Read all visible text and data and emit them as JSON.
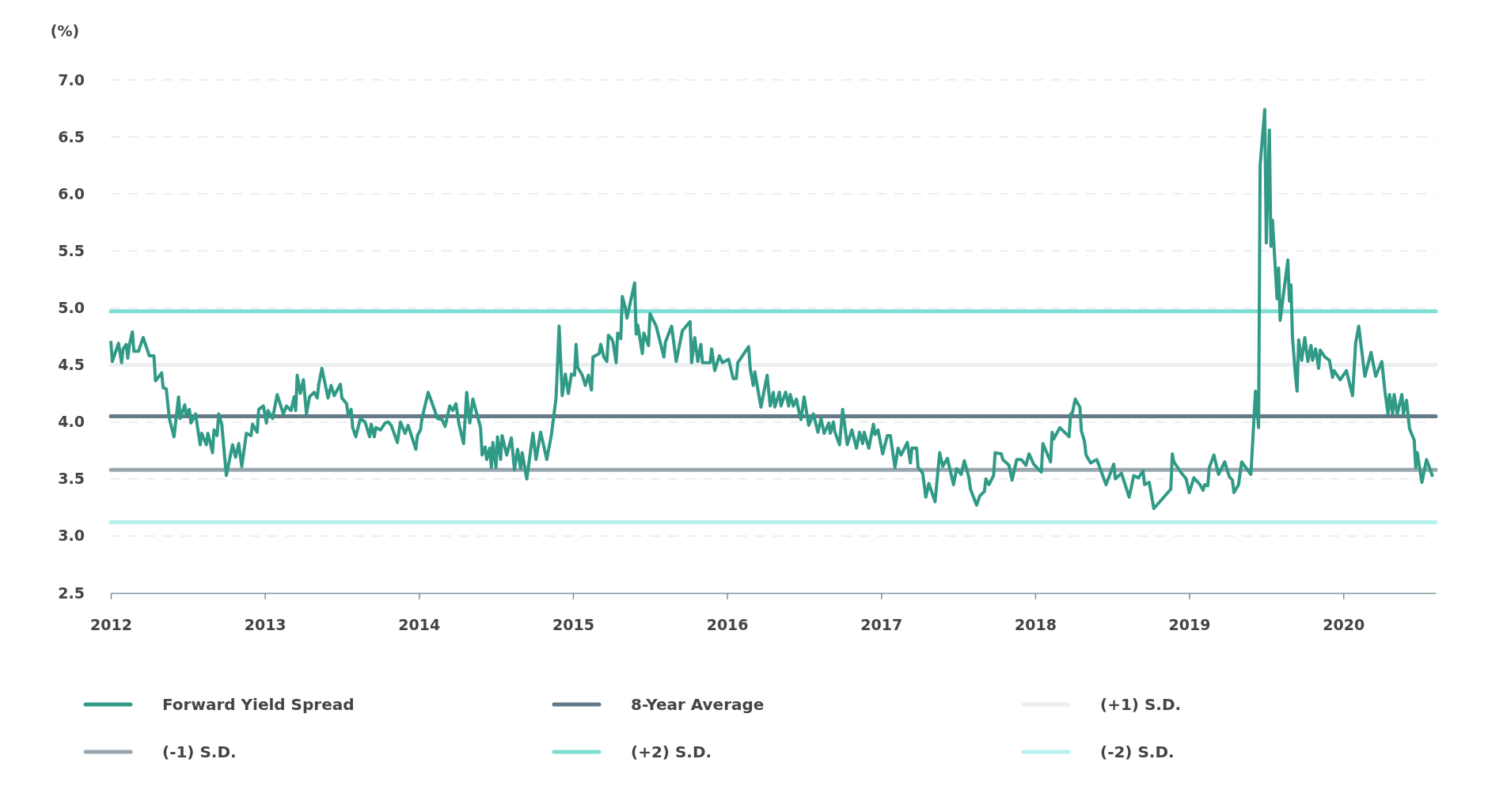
{
  "chart_data": {
    "type": "line",
    "ylabel": "(%)",
    "xlim": [
      2012,
      2020.6
    ],
    "xticks": [
      2012,
      2013,
      2014,
      2015,
      2016,
      2017,
      2018,
      2019,
      2020
    ],
    "ylim": [
      2.5,
      7
    ],
    "yticks": [
      {
        "value": 2.5,
        "label": "2.5"
      },
      {
        "value": 3,
        "label": "3.0"
      },
      {
        "value": 3.5,
        "label": "3.5"
      },
      {
        "value": 4,
        "label": "4.0"
      },
      {
        "value": 4.5,
        "label": "4.5"
      },
      {
        "value": 5,
        "label": "5.0"
      },
      {
        "value": 5.5,
        "label": "5.5"
      },
      {
        "value": 6,
        "label": "6.0"
      },
      {
        "value": 6.5,
        "label": "6.5"
      },
      {
        "value": 7,
        "label": "7.0"
      }
    ],
    "grid": "y",
    "legend": "bottom",
    "line_style": "solid",
    "marker": "none",
    "x": [
      2012.0,
      2012.01,
      2012.05,
      2012.07,
      2012.08,
      2012.1,
      2012.11,
      2012.12,
      2012.14,
      2012.15,
      2012.18,
      2012.21,
      2012.25,
      2012.28,
      2012.29,
      2012.33,
      2012.34,
      2012.36,
      2012.38,
      2012.41,
      2012.44,
      2012.45,
      2012.48,
      2012.49,
      2012.51,
      2012.52,
      2012.55,
      2012.58,
      2012.59,
      2012.62,
      2012.63,
      2012.64,
      2012.66,
      2012.67,
      2012.69,
      2012.7,
      2012.72,
      2012.75,
      2012.79,
      2012.81,
      2012.83,
      2012.85,
      2012.88,
      2012.91,
      2012.92,
      2012.95,
      2012.96,
      2012.99,
      2013.01,
      2013.02,
      2013.05,
      2013.08,
      2013.12,
      2013.14,
      2013.17,
      2013.19,
      2013.2,
      2013.21,
      2013.23,
      2013.25,
      2013.27,
      2013.29,
      2013.32,
      2013.34,
      2013.35,
      2013.37,
      2013.41,
      2013.43,
      2013.45,
      2013.49,
      2013.5,
      2013.53,
      2013.54,
      2013.56,
      2013.57,
      2013.59,
      2013.62,
      2013.65,
      2013.68,
      2013.69,
      2013.71,
      2013.72,
      2013.75,
      2013.78,
      2013.8,
      2013.82,
      2013.86,
      2013.88,
      2013.91,
      2013.93,
      2013.98,
      2013.99,
      2014.01,
      2014.02,
      2014.06,
      2014.1,
      2014.12,
      2014.15,
      2014.17,
      2014.2,
      2014.22,
      2014.24,
      2014.26,
      2014.29,
      2014.31,
      2014.33,
      2014.35,
      2014.4,
      2014.41,
      2014.43,
      2014.44,
      2014.46,
      2014.47,
      2014.48,
      2014.5,
      2014.51,
      2014.53,
      2014.54,
      2014.57,
      2014.6,
      2014.62,
      2014.64,
      2014.66,
      2014.67,
      2014.7,
      2014.74,
      2014.76,
      2014.79,
      2014.83,
      2014.86,
      2014.89,
      2014.91,
      2014.93,
      2014.95,
      2014.97,
      2014.99,
      2015.01,
      2015.02,
      2015.03,
      2015.06,
      2015.08,
      2015.1,
      2015.12,
      2015.13,
      2015.17,
      2015.18,
      2015.2,
      2015.22,
      2015.23,
      2015.25,
      2015.26,
      2015.28,
      2015.29,
      2015.31,
      2015.32,
      2015.34,
      2015.35,
      2015.4,
      2015.41,
      2015.42,
      2015.43,
      2015.45,
      2015.46,
      2015.49,
      2015.5,
      2015.54,
      2015.59,
      2015.6,
      2015.64,
      2015.67,
      2015.71,
      2015.76,
      2015.77,
      2015.79,
      2015.81,
      2015.83,
      2015.84,
      2015.89,
      2015.9,
      2015.92,
      2015.95,
      2015.97,
      2016.01,
      2016.04,
      2016.06,
      2016.07,
      2016.14,
      2016.15,
      2016.17,
      2016.18,
      2016.22,
      2016.26,
      2016.28,
      2016.3,
      2016.31,
      2016.34,
      2016.35,
      2016.38,
      2016.4,
      2016.41,
      2016.43,
      2016.45,
      2016.47,
      2016.48,
      2016.5,
      2016.53,
      2016.56,
      2016.59,
      2016.61,
      2016.63,
      2016.66,
      2016.67,
      2016.69,
      2016.7,
      2016.73,
      2016.75,
      2016.78,
      2016.81,
      2016.84,
      2016.86,
      2016.88,
      2016.89,
      2016.92,
      2016.95,
      2016.96,
      2016.98,
      2017.01,
      2017.04,
      2017.06,
      2017.09,
      2017.11,
      2017.13,
      2017.17,
      2017.19,
      2017.2,
      2017.23,
      2017.24,
      2017.27,
      2017.29,
      2017.31,
      2017.35,
      2017.38,
      2017.4,
      2017.43,
      2017.47,
      2017.49,
      2017.52,
      2017.54,
      2017.57,
      2017.58,
      2017.62,
      2017.64,
      2017.67,
      2017.68,
      2017.7,
      2017.73,
      2017.74,
      2017.78,
      2017.79,
      2017.83,
      2017.85,
      2017.88,
      2017.91,
      2017.94,
      2017.96,
      2017.99,
      2018.04,
      2018.05,
      2018.1,
      2018.11,
      2018.12,
      2018.16,
      2018.22,
      2018.23,
      2018.24,
      2018.26,
      2018.29,
      2018.3,
      2018.32,
      2018.33,
      2018.36,
      2018.4,
      2018.46,
      2018.51,
      2018.52,
      2018.56,
      2018.61,
      2018.64,
      2018.67,
      2018.7,
      2018.71,
      2018.74,
      2018.77,
      2018.88,
      2018.89,
      2018.9,
      2018.95,
      2018.98,
      2019.0,
      2019.03,
      2019.07,
      2019.09,
      2019.1,
      2019.12,
      2019.13,
      2019.16,
      2019.19,
      2019.23,
      2019.26,
      2019.28,
      2019.29,
      2019.32,
      2019.34,
      2019.4,
      2019.43,
      2019.45,
      2019.46,
      2019.49,
      2019.5,
      2019.52,
      2019.53,
      2019.54,
      2019.57,
      2019.58,
      2019.59,
      2019.64,
      2019.65,
      2019.66,
      2019.67,
      2019.69,
      2019.7,
      2019.71,
      2019.73,
      2019.75,
      2019.77,
      2019.79,
      2019.8,
      2019.82,
      2019.84,
      2019.85,
      2019.88,
      2019.91,
      2019.93,
      2019.94,
      2019.98,
      2020.02,
      2020.06,
      2020.08,
      2020.1,
      2020.14,
      2020.18,
      2020.21,
      2020.25,
      2020.27,
      2020.29,
      2020.3,
      2020.32,
      2020.33,
      2020.35,
      2020.38,
      2020.39,
      2020.41,
      2020.43,
      2020.46,
      2020.47,
      2020.48,
      2020.51,
      2020.54,
      2020.58
    ],
    "series": [
      {
        "name": "Forward Yield Spread",
        "color": "#319a87",
        "values": [
          4.71,
          4.53,
          4.69,
          4.52,
          4.64,
          4.68,
          4.56,
          4.67,
          4.79,
          4.62,
          4.62,
          4.74,
          4.58,
          4.58,
          4.36,
          4.43,
          4.3,
          4.29,
          4.03,
          3.87,
          4.22,
          4.03,
          4.15,
          4.06,
          4.11,
          3.99,
          4.07,
          3.8,
          3.9,
          3.8,
          3.9,
          3.85,
          3.73,
          3.93,
          3.88,
          4.07,
          3.98,
          3.53,
          3.8,
          3.69,
          3.81,
          3.61,
          3.9,
          3.88,
          3.98,
          3.91,
          4.11,
          4.14,
          3.99,
          4.1,
          4.03,
          4.24,
          4.07,
          4.14,
          4.1,
          4.22,
          4.1,
          4.41,
          4.25,
          4.37,
          4.07,
          4.22,
          4.26,
          4.21,
          4.33,
          4.47,
          4.21,
          4.32,
          4.23,
          4.33,
          4.21,
          4.16,
          4.07,
          4.11,
          3.95,
          3.87,
          4.03,
          4.0,
          3.87,
          3.98,
          3.87,
          3.95,
          3.93,
          3.99,
          4.0,
          3.97,
          3.82,
          4.0,
          3.9,
          3.97,
          3.76,
          3.88,
          3.93,
          4.03,
          4.26,
          4.11,
          4.03,
          4.02,
          3.96,
          4.14,
          4.1,
          4.16,
          3.98,
          3.81,
          4.26,
          3.99,
          4.2,
          3.95,
          3.71,
          3.78,
          3.67,
          3.77,
          3.6,
          3.82,
          3.6,
          3.87,
          3.67,
          3.88,
          3.71,
          3.86,
          3.58,
          3.76,
          3.59,
          3.73,
          3.5,
          3.9,
          3.67,
          3.91,
          3.67,
          3.89,
          4.21,
          4.84,
          4.23,
          4.42,
          4.25,
          4.42,
          4.41,
          4.68,
          4.48,
          4.41,
          4.32,
          4.41,
          4.28,
          4.57,
          4.6,
          4.68,
          4.57,
          4.53,
          4.76,
          4.73,
          4.7,
          4.52,
          4.78,
          4.73,
          5.1,
          5.0,
          4.91,
          5.22,
          4.77,
          4.85,
          4.77,
          4.6,
          4.78,
          4.67,
          4.95,
          4.84,
          4.57,
          4.7,
          4.84,
          4.53,
          4.8,
          4.88,
          4.52,
          4.74,
          4.53,
          4.68,
          4.52,
          4.52,
          4.64,
          4.45,
          4.58,
          4.52,
          4.55,
          4.38,
          4.38,
          4.52,
          4.66,
          4.47,
          4.32,
          4.44,
          4.13,
          4.41,
          4.14,
          4.26,
          4.13,
          4.26,
          4.14,
          4.26,
          4.14,
          4.24,
          4.14,
          4.2,
          4.07,
          4.02,
          4.22,
          3.97,
          4.07,
          3.91,
          4.03,
          3.9,
          3.99,
          3.9,
          4.0,
          3.91,
          3.8,
          4.11,
          3.8,
          3.93,
          3.77,
          3.91,
          3.81,
          3.91,
          3.77,
          3.98,
          3.89,
          3.93,
          3.72,
          3.88,
          3.88,
          3.6,
          3.77,
          3.71,
          3.82,
          3.64,
          3.77,
          3.77,
          3.6,
          3.55,
          3.34,
          3.46,
          3.3,
          3.73,
          3.61,
          3.68,
          3.45,
          3.59,
          3.54,
          3.66,
          3.51,
          3.41,
          3.27,
          3.35,
          3.39,
          3.5,
          3.45,
          3.53,
          3.73,
          3.72,
          3.67,
          3.62,
          3.49,
          3.67,
          3.67,
          3.62,
          3.72,
          3.63,
          3.56,
          3.81,
          3.65,
          3.91,
          3.85,
          3.95,
          3.87,
          4.07,
          4.07,
          4.2,
          4.13,
          3.92,
          3.83,
          3.71,
          3.64,
          3.67,
          3.45,
          3.63,
          3.5,
          3.55,
          3.34,
          3.53,
          3.51,
          3.57,
          3.45,
          3.47,
          3.24,
          3.41,
          3.72,
          3.65,
          3.55,
          3.5,
          3.38,
          3.51,
          3.45,
          3.4,
          3.45,
          3.44,
          3.6,
          3.71,
          3.54,
          3.65,
          3.52,
          3.49,
          3.38,
          3.45,
          3.65,
          3.54,
          4.27,
          3.95,
          6.25,
          6.74,
          5.57,
          6.56,
          5.54,
          5.77,
          5.08,
          5.35,
          4.89,
          5.42,
          5.06,
          5.2,
          4.74,
          4.4,
          4.27,
          4.72,
          4.54,
          4.74,
          4.53,
          4.67,
          4.54,
          4.64,
          4.47,
          4.63,
          4.57,
          4.54,
          4.39,
          4.45,
          4.37,
          4.45,
          4.23,
          4.69,
          4.84,
          4.4,
          4.61,
          4.4,
          4.53,
          4.27,
          4.07,
          4.24,
          4.07,
          4.24,
          4.07,
          4.24,
          4.07,
          4.19,
          3.94,
          3.84,
          3.6,
          3.73,
          3.47,
          3.67,
          3.52
        ]
      }
    ],
    "ref_lines": [
      {
        "axis": "y",
        "value": 4.05,
        "label": "8-Year Average",
        "color": "#647a87"
      },
      {
        "axis": "y",
        "value": 4.5,
        "label": "(+1) S.D.",
        "color": "#eceff2"
      },
      {
        "axis": "y",
        "value": 3.58,
        "label": "(-1) S.D.",
        "color": "#98a6ae"
      },
      {
        "axis": "y",
        "value": 4.97,
        "label": "(+2) S.D.",
        "color": "#7ddfd2"
      },
      {
        "axis": "y",
        "value": 3.12,
        "label": "(-2) S.D.",
        "color": "#b6f1ee"
      }
    ]
  }
}
